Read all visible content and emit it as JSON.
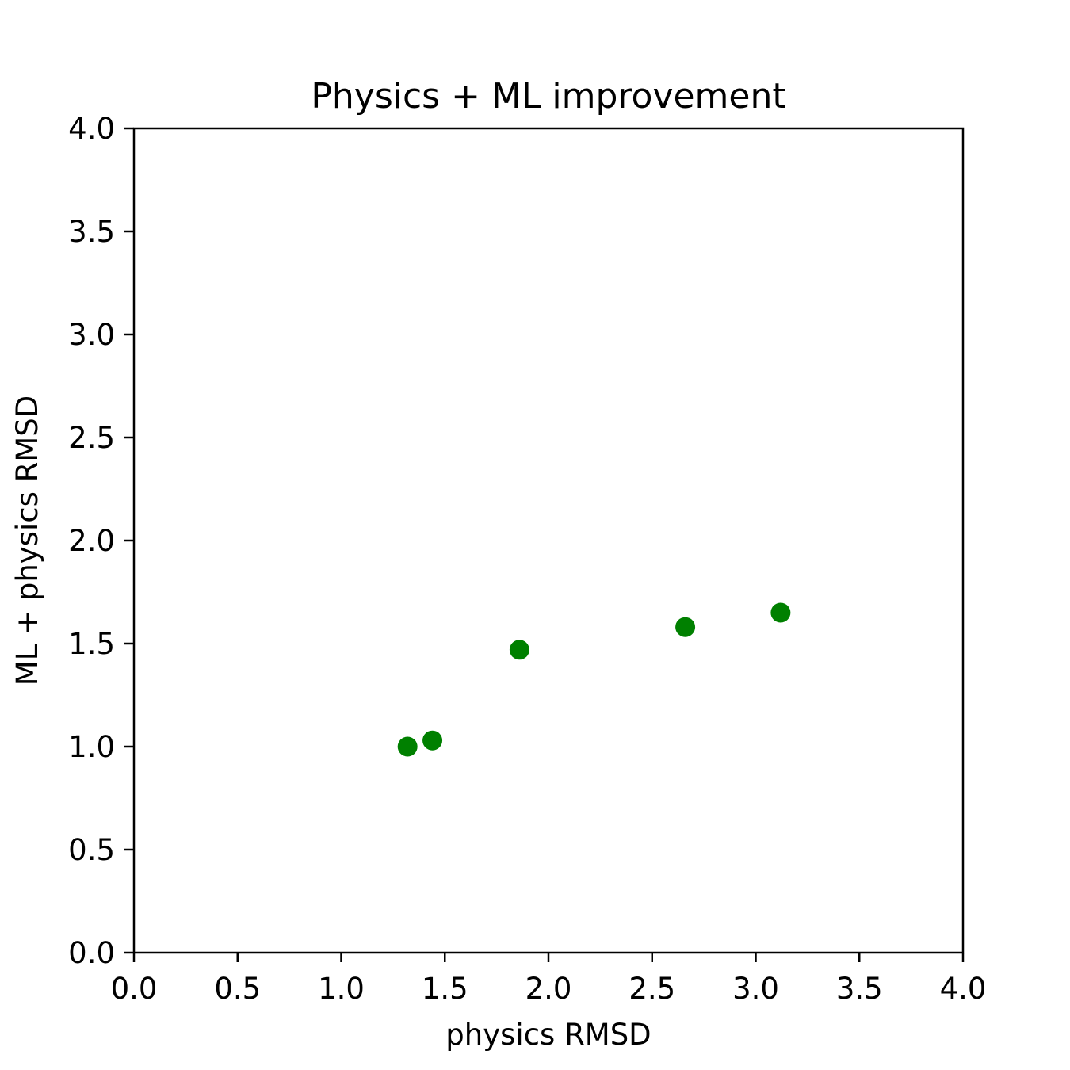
{
  "chart_data": {
    "type": "scatter",
    "title": "Physics + ML improvement",
    "xlabel": "physics RMSD",
    "ylabel": "ML + physics RMSD",
    "xlim": [
      0.0,
      4.0
    ],
    "ylim": [
      0.0,
      4.0
    ],
    "xticks": [
      "0.0",
      "0.5",
      "1.0",
      "1.5",
      "2.0",
      "2.5",
      "3.0",
      "3.5",
      "4.0"
    ],
    "yticks": [
      "0.0",
      "0.5",
      "1.0",
      "1.5",
      "2.0",
      "2.5",
      "3.0",
      "3.5",
      "4.0"
    ],
    "grid": false,
    "series": [
      {
        "color": "#008000",
        "points": [
          {
            "x": 1.32,
            "y": 1.0
          },
          {
            "x": 1.44,
            "y": 1.03
          },
          {
            "x": 1.86,
            "y": 1.47
          },
          {
            "x": 2.66,
            "y": 1.58
          },
          {
            "x": 3.12,
            "y": 1.65
          }
        ]
      }
    ]
  }
}
